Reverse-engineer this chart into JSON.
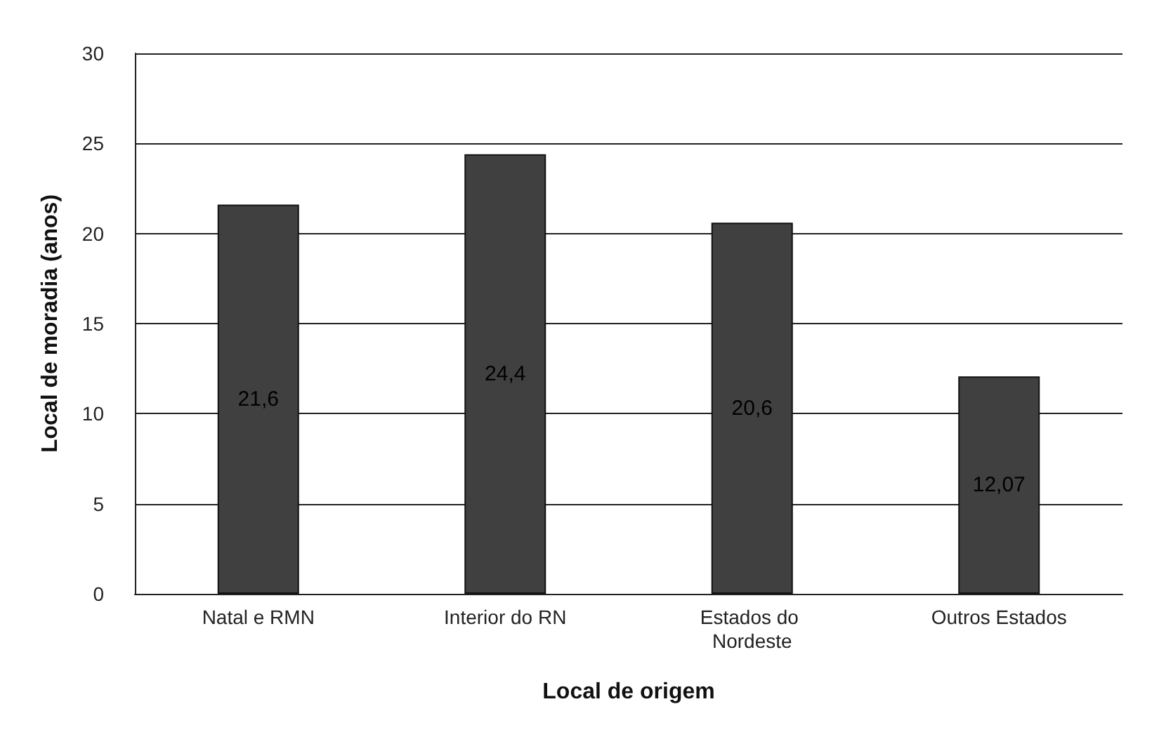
{
  "chart_data": {
    "type": "bar",
    "xlabel": "Local de origem",
    "ylabel": "Local de moradia (anos)",
    "categories": [
      "Natal e RMN",
      "Interior do RN",
      "Estados do Nordeste",
      "Outros Estados"
    ],
    "values": [
      21.6,
      24.4,
      20.6,
      12.07
    ],
    "value_labels": [
      "21,6",
      "24,4",
      "20,6",
      "12,07"
    ],
    "color": "#404040",
    "ylim": [
      0,
      30
    ],
    "yticks": [
      0,
      5,
      10,
      15,
      20,
      25,
      30
    ],
    "grid": "y"
  }
}
